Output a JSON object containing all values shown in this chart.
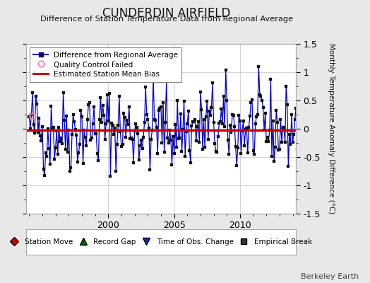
{
  "title": "CUNDERDIN AIRFIELD",
  "subtitle": "Difference of Station Temperature Data from Regional Average",
  "ylabel": "Monthly Temperature Anomaly Difference (°C)",
  "bias_value": -0.02,
  "ylim": [
    -1.5,
    1.5
  ],
  "xlim": [
    1993.75,
    2014.25
  ],
  "xticks": [
    2000,
    2005,
    2010
  ],
  "yticks": [
    -1.5,
    -1.0,
    -0.5,
    0.0,
    0.5,
    1.0,
    1.5
  ],
  "yticklabels": [
    "-1.5",
    "-1",
    "-0.5",
    "0",
    "0.5",
    "1",
    "1.5"
  ],
  "background_color": "#e8e8e8",
  "plot_bg_color": "#ffffff",
  "line_color": "#0000cc",
  "bias_color": "#cc0000",
  "qc_failed_x": [
    1994.25
  ],
  "qc_failed_y": [
    0.22
  ],
  "seed": 42,
  "n_points": 246,
  "start_year": 1994.0,
  "berkeley_earth_text": "Berkeley Earth"
}
